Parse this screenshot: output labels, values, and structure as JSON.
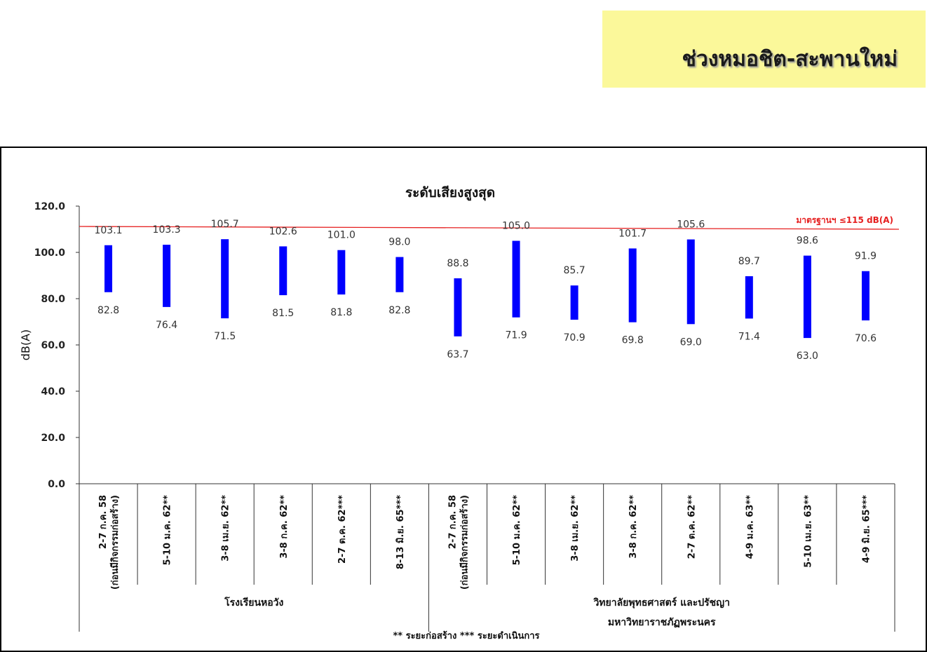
{
  "header": {
    "title": "ช่วงหมอชิต-สะพานใหม่"
  },
  "colors": {
    "header_bg": "#fbf89a",
    "bar": "#0000ff",
    "standard_line": "#e62020"
  },
  "chart_data": {
    "type": "bar",
    "subtype": "floating-range",
    "title": "ระดับเสียงสูงสุด",
    "ylabel": "dB(A)",
    "ylim": [
      0,
      120
    ],
    "yticks": [
      "0.0",
      "20.0",
      "40.0",
      "60.0",
      "80.0",
      "100.0",
      "120.0"
    ],
    "grid": false,
    "standard": {
      "label": "มาตรฐานฯ ≤115 dB(A)"
    },
    "categories": [
      [
        "2-7 ก.ค. 58",
        "(ก่อนมีกิจกรรมก่อสร้าง)"
      ],
      [
        "5-10 ม.ค. 62**"
      ],
      [
        "3-8 เม.ย. 62**"
      ],
      [
        "3-8 ก.ค. 62**"
      ],
      [
        "2-7 ต.ค. 62***"
      ],
      [
        "8-13 มิ.ย. 65***"
      ],
      [
        "2-7 ก.ค. 58",
        "(ก่อนมีกิจกรรมก่อสร้าง)"
      ],
      [
        "5-10 ม.ค. 62**"
      ],
      [
        "3-8 เม.ย. 62**"
      ],
      [
        "3-8 ก.ค. 62**"
      ],
      [
        "2-7 ต.ค. 62**"
      ],
      [
        "4-9 ม.ค. 63**"
      ],
      [
        "5-10 เม.ย. 63**"
      ],
      [
        "4-9 มิ.ย. 65***"
      ]
    ],
    "groups": [
      {
        "label": [
          "โรงเรียนหอวัง"
        ],
        "count": 6
      },
      {
        "label": [
          "วิทยาลัยพุทธศาสตร์ และปรัชญา",
          "มหาวิทยาราชภัฏพระนคร"
        ],
        "count": 8
      }
    ],
    "series": [
      {
        "name": "max",
        "values": [
          103.1,
          103.3,
          105.7,
          102.6,
          101.0,
          98.0,
          88.8,
          105.0,
          85.7,
          101.7,
          105.6,
          89.7,
          98.6,
          91.9
        ]
      },
      {
        "name": "min",
        "values": [
          82.8,
          76.4,
          71.5,
          81.5,
          81.8,
          82.8,
          63.7,
          71.9,
          70.9,
          69.8,
          69.0,
          71.4,
          63.0,
          70.6
        ]
      }
    ],
    "footnote": "** ระยะก่อสร้าง    *** ระยะดำเนินการ"
  }
}
